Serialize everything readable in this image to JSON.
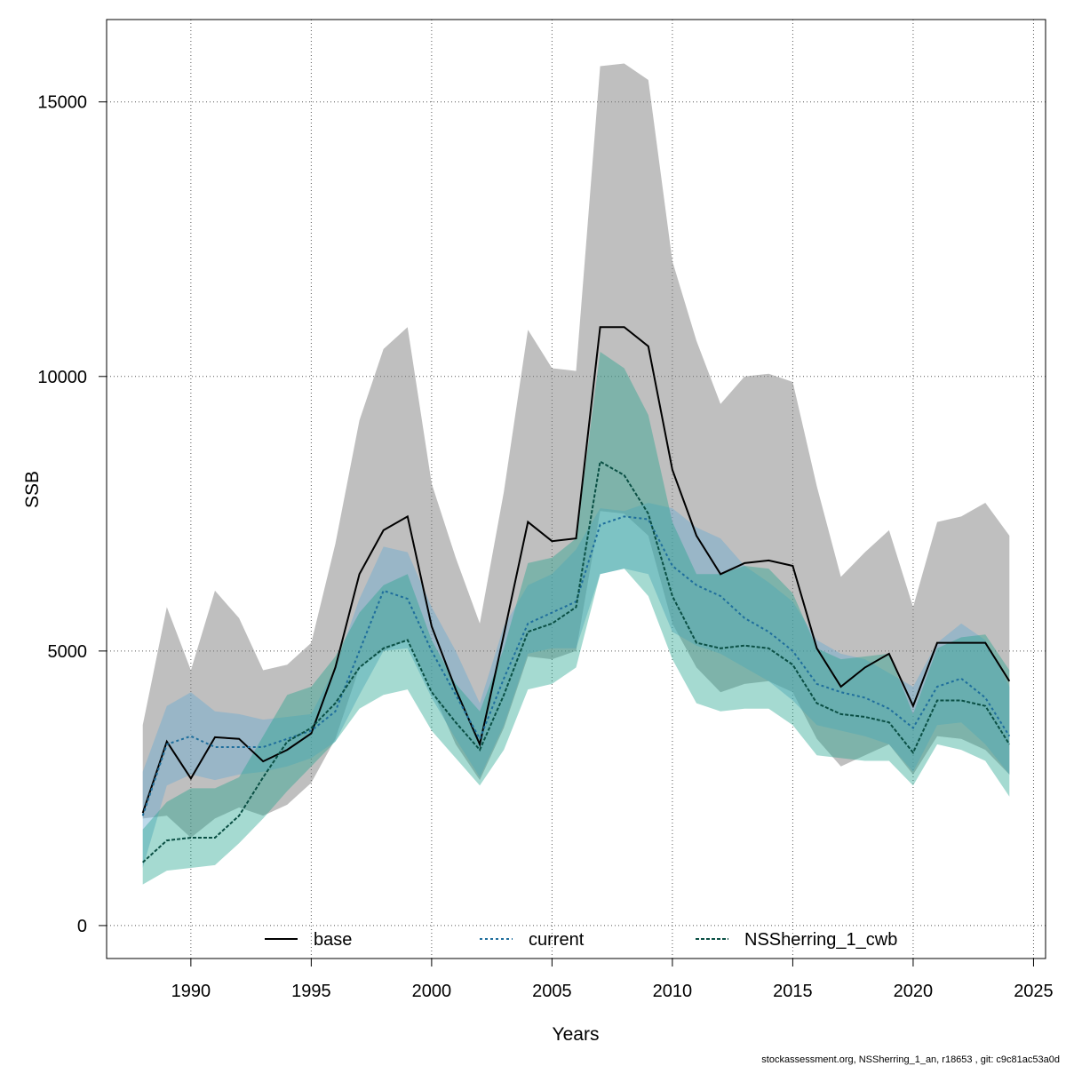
{
  "chart_data": {
    "type": "line",
    "xlabel": "Years",
    "ylabel": "SSB",
    "xlim": [
      1986.5,
      2025.5
    ],
    "ylim": [
      -600,
      16500
    ],
    "x_ticks": [
      1990,
      1995,
      2000,
      2005,
      2010,
      2015,
      2020,
      2025
    ],
    "y_ticks": [
      0,
      5000,
      10000,
      15000
    ],
    "grid": true,
    "legend_placement": "bottom",
    "x": [
      1988,
      1989,
      1990,
      1991,
      1992,
      1993,
      1994,
      1995,
      1996,
      1997,
      1998,
      1999,
      2000,
      2001,
      2002,
      2003,
      2004,
      2005,
      2006,
      2007,
      2008,
      2009,
      2010,
      2011,
      2012,
      2013,
      2014,
      2015,
      2016,
      2017,
      2018,
      2019,
      2020,
      2021,
      2022,
      2023,
      2024
    ],
    "series": [
      {
        "name": "base",
        "color": "#000000",
        "band_color": "#808080",
        "line_style": "solid",
        "values": [
          2050,
          3350,
          2680,
          3430,
          3400,
          2990,
          3200,
          3500,
          4700,
          6400,
          7200,
          7450,
          5450,
          4300,
          3300,
          5300,
          7350,
          7000,
          7050,
          10900,
          10900,
          10550,
          8300,
          7100,
          6400,
          6600,
          6650,
          6550,
          5050,
          4350,
          4700,
          4950,
          4000,
          5150,
          5150,
          5150,
          4450
        ],
        "lower": [
          1950,
          2000,
          1600,
          1950,
          2150,
          2000,
          2200,
          2600,
          3400,
          4700,
          5000,
          5200,
          4300,
          3300,
          2650,
          3600,
          4900,
          4850,
          5000,
          7550,
          7500,
          7100,
          5500,
          4700,
          4250,
          4400,
          4450,
          4250,
          3400,
          2900,
          3100,
          3300,
          2750,
          3450,
          3400,
          3200,
          2750
        ],
        "upper": [
          3650,
          5800,
          4650,
          6100,
          5600,
          4650,
          4750,
          5150,
          6950,
          9200,
          10500,
          10900,
          8050,
          6700,
          5500,
          7900,
          10850,
          10150,
          10100,
          15650,
          15700,
          15400,
          12100,
          10650,
          9500,
          10000,
          10050,
          9900,
          8000,
          6350,
          6800,
          7200,
          5800,
          7350,
          7450,
          7700,
          7100
        ]
      },
      {
        "name": "current",
        "color": "#1f6e9c",
        "band_color": "#6aaad0",
        "line_style": "dotted",
        "values": [
          2000,
          3300,
          3450,
          3250,
          3250,
          3250,
          3400,
          3550,
          3900,
          5000,
          6100,
          5950,
          5000,
          4200,
          3400,
          4500,
          5500,
          5700,
          5900,
          7300,
          7450,
          7400,
          6550,
          6200,
          6000,
          5600,
          5350,
          5000,
          4400,
          4250,
          4150,
          3950,
          3600,
          4350,
          4500,
          4150,
          3450
        ],
        "lower": [
          1050,
          2550,
          2750,
          2650,
          2750,
          2800,
          2900,
          3050,
          3350,
          4200,
          5000,
          5050,
          4150,
          3400,
          2700,
          3650,
          4950,
          5050,
          5050,
          6400,
          6500,
          6400,
          5350,
          5100,
          4950,
          4700,
          4450,
          4100,
          3650,
          3550,
          3450,
          3300,
          2800,
          3650,
          3700,
          3300,
          2750
        ],
        "upper": [
          2800,
          4000,
          4250,
          3900,
          3850,
          3750,
          3800,
          3850,
          4700,
          5950,
          6900,
          6800,
          5800,
          5000,
          4050,
          5450,
          6200,
          6400,
          6850,
          7600,
          7550,
          7700,
          7600,
          7250,
          7050,
          6550,
          6250,
          5900,
          5200,
          4950,
          4850,
          4600,
          4350,
          5150,
          5500,
          5200,
          4350
        ]
      },
      {
        "name": "NSSherring_1_cwb",
        "color": "#0a4f44",
        "band_color": "#1fa28c",
        "line_style": "dashed",
        "values": [
          1150,
          1550,
          1600,
          1600,
          2000,
          2700,
          3350,
          3600,
          4050,
          4700,
          5050,
          5200,
          4250,
          3700,
          3200,
          4200,
          5350,
          5500,
          5800,
          8450,
          8200,
          7500,
          6000,
          5150,
          5050,
          5100,
          5050,
          4750,
          4050,
          3850,
          3800,
          3700,
          3150,
          4100,
          4100,
          4000,
          3300
        ],
        "lower": [
          750,
          1000,
          1050,
          1100,
          1500,
          1950,
          2450,
          2900,
          3350,
          3950,
          4200,
          4300,
          3550,
          3050,
          2550,
          3200,
          4300,
          4400,
          4700,
          6400,
          6500,
          6000,
          4850,
          4050,
          3900,
          3950,
          3950,
          3650,
          3100,
          3050,
          3000,
          3000,
          2550,
          3300,
          3200,
          3000,
          2350
        ],
        "upper": [
          1750,
          2250,
          2500,
          2500,
          2700,
          3450,
          4200,
          4350,
          4900,
          5700,
          6200,
          6400,
          5200,
          4400,
          3900,
          5050,
          6600,
          6700,
          7050,
          10450,
          10150,
          9300,
          7350,
          6400,
          6400,
          6550,
          6500,
          6050,
          5050,
          4850,
          4900,
          4950,
          3850,
          5050,
          5250,
          5300,
          4650
        ]
      }
    ],
    "footer_text": "stockassessment.org, NSSherring_1_an, r18653 , git: c9c81ac53a0d"
  }
}
